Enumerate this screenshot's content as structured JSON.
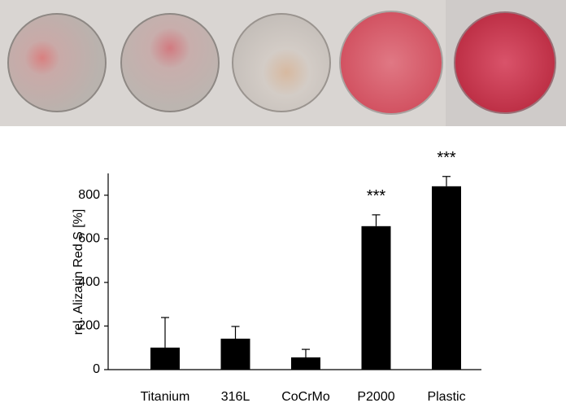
{
  "chart_data": {
    "type": "bar",
    "y_label": "rel. Alizarin Red S [%]",
    "categories": [
      "Titanium",
      "316L",
      "CoCrMo",
      "P2000",
      "Plastic"
    ],
    "values": [
      101,
      142,
      56,
      658,
      841
    ],
    "errors": [
      138,
      56,
      37,
      52,
      45
    ],
    "significance": [
      null,
      null,
      null,
      "***",
      "***"
    ],
    "color": "#000000",
    "ylim": [
      0,
      900
    ],
    "yticks": [
      0,
      200,
      400,
      600,
      800
    ],
    "grid": false
  }
}
